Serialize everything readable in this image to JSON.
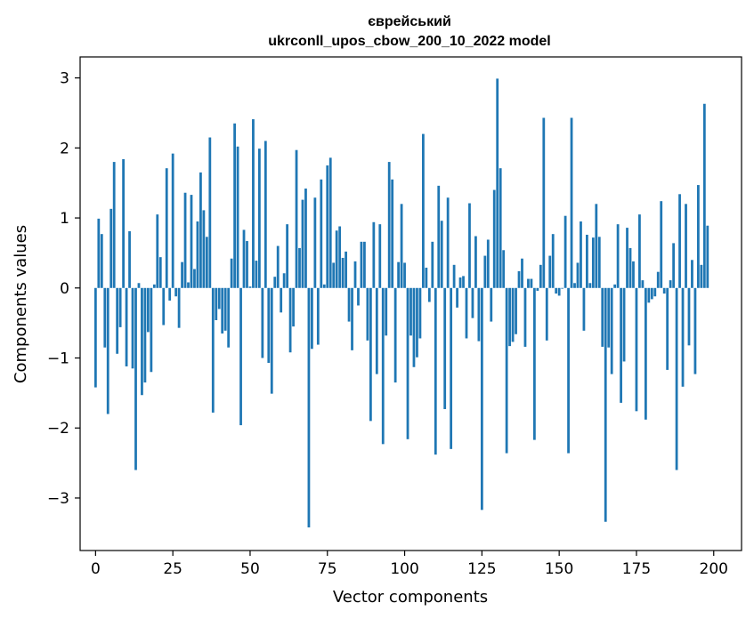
{
  "chart_data": {
    "type": "bar",
    "title_line1": "єврейський",
    "title_line2": "ukrconll_upos_cbow_200_10_2022 model",
    "xlabel": "Vector components",
    "ylabel": "Components values",
    "xlim": [
      -5,
      209
    ],
    "ylim": [
      -3.75,
      3.3
    ],
    "x_ticks": [
      0,
      25,
      50,
      75,
      100,
      125,
      150,
      175,
      200
    ],
    "y_ticks": [
      -3,
      -2,
      -1,
      0,
      1,
      2,
      3
    ],
    "x_tick_labels": [
      "0",
      "25",
      "50",
      "75",
      "100",
      "125",
      "150",
      "175",
      "200"
    ],
    "y_tick_labels": [
      "−3",
      "−2",
      "−1",
      "0",
      "1",
      "2",
      "3"
    ],
    "bar_color": "#1f77b4",
    "grid": false,
    "values": [
      -1.42,
      0.99,
      0.77,
      -0.85,
      -1.8,
      1.13,
      1.8,
      -0.94,
      -0.56,
      1.84,
      -1.12,
      0.81,
      -1.15,
      -2.6,
      0.07,
      -1.53,
      -1.35,
      -0.63,
      -1.2,
      0.05,
      1.05,
      0.44,
      -0.53,
      1.71,
      -0.18,
      1.92,
      -0.12,
      -0.57,
      0.37,
      1.36,
      0.08,
      1.33,
      0.27,
      0.95,
      1.65,
      1.11,
      0.73,
      2.15,
      -1.78,
      -0.46,
      -0.3,
      -0.65,
      -0.61,
      -0.85,
      0.42,
      2.35,
      2.02,
      -1.96,
      0.83,
      0.67,
      0.02,
      2.41,
      0.39,
      1.99,
      -1.0,
      2.1,
      -1.07,
      -1.51,
      0.16,
      0.6,
      -0.35,
      0.21,
      0.91,
      -0.92,
      -0.55,
      1.97,
      0.57,
      1.26,
      1.42,
      -3.42,
      -0.87,
      1.29,
      -0.81,
      1.55,
      0.05,
      1.75,
      1.86,
      0.36,
      0.82,
      0.88,
      0.43,
      0.52,
      -0.48,
      -0.89,
      0.38,
      -0.25,
      0.66,
      0.66,
      -0.75,
      -1.9,
      0.94,
      -1.23,
      0.91,
      -2.23,
      -0.68,
      1.8,
      1.55,
      -1.35,
      0.37,
      1.2,
      0.36,
      -2.16,
      -0.68,
      -1.13,
      -0.99,
      -0.72,
      2.2,
      0.29,
      -0.2,
      0.66,
      -2.38,
      1.46,
      0.96,
      -1.73,
      1.29,
      -2.3,
      0.33,
      -0.28,
      0.15,
      0.17,
      -0.72,
      1.21,
      -0.43,
      0.74,
      -0.76,
      -3.17,
      0.46,
      0.69,
      -0.48,
      1.4,
      2.99,
      1.71,
      0.54,
      -2.36,
      -0.83,
      -0.77,
      -0.66,
      0.24,
      0.42,
      -0.84,
      0.13,
      0.13,
      -2.17,
      -0.04,
      0.33,
      2.43,
      -0.75,
      0.46,
      0.77,
      -0.08,
      -0.11,
      -0.01,
      1.03,
      -2.36,
      2.43,
      0.07,
      0.36,
      0.95,
      -0.61,
      0.76,
      0.07,
      0.72,
      1.2,
      0.73,
      -0.84,
      -3.34,
      -0.85,
      -1.23,
      0.05,
      0.91,
      -1.64,
      -1.05,
      0.86,
      0.57,
      0.38,
      -1.76,
      1.05,
      0.11,
      -1.88,
      -0.21,
      -0.16,
      -0.12,
      0.23,
      1.24,
      -0.08,
      -1.17,
      0.11,
      0.64,
      -2.6,
      1.34,
      -1.41,
      1.2,
      -0.82,
      0.4,
      -1.23,
      1.47,
      0.33,
      2.63,
      0.89
    ]
  }
}
